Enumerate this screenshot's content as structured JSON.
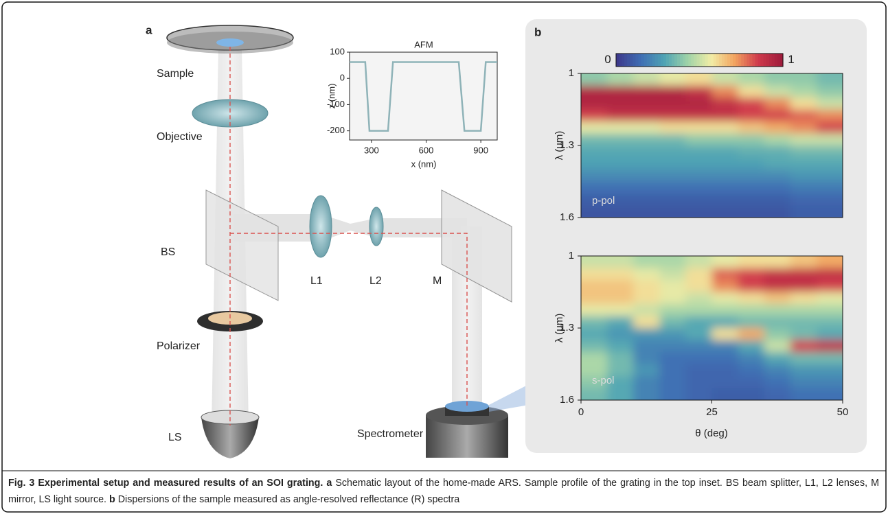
{
  "figure": {
    "panel_a_label": "a",
    "panel_b_label": "b",
    "components": {
      "sample": "Sample",
      "objective": "Objective",
      "bs": "BS",
      "polarizer": "Polarizer",
      "ls": "LS",
      "l1": "L1",
      "l2": "L2",
      "m": "M",
      "spectrometer": "Spectrometer"
    }
  },
  "chart_data": [
    {
      "type": "line",
      "title": "AFM",
      "x_label": "x (nm)",
      "y_label": "z (nm)",
      "x": [
        180,
        266,
        289,
        391,
        418,
        779,
        810,
        900,
        927,
        990
      ],
      "values": [
        62,
        62,
        -200,
        -200,
        62,
        62,
        -200,
        -200,
        62,
        62
      ],
      "color": "#8fb3b8",
      "xlim": [
        180,
        990
      ],
      "ylim": [
        -235,
        100
      ],
      "xticks": [
        300,
        600,
        900
      ],
      "yticks": [
        100,
        0,
        -100,
        -200
      ]
    },
    {
      "type": "heatmap",
      "annotation": "p-pol",
      "y_label": "λ (μm)",
      "colormap": [
        "#3d3a8c",
        "#3f6eb4",
        "#4fa3b4",
        "#9fd3a8",
        "#f2eda6",
        "#f2a35f",
        "#cf3a4c",
        "#a01c3c"
      ],
      "colorbar": {
        "ticks": [
          0,
          1
        ]
      },
      "x": [
        2.5,
        7.5,
        12.5,
        17.5,
        22.5,
        27.5,
        32.5,
        37.5,
        42.5,
        47.5
      ],
      "y": [
        1.025,
        1.075,
        1.125,
        1.175,
        1.225,
        1.275,
        1.325,
        1.375,
        1.425,
        1.475,
        1.525,
        1.575
      ],
      "z": [
        [
          0.4,
          0.45,
          0.5,
          0.55,
          0.6,
          0.5,
          0.45,
          0.4,
          0.4,
          0.35
        ],
        [
          0.95,
          0.95,
          0.95,
          0.95,
          0.9,
          0.75,
          0.6,
          0.5,
          0.45,
          0.4
        ],
        [
          0.95,
          0.95,
          0.95,
          0.95,
          0.95,
          0.9,
          0.85,
          0.75,
          0.6,
          0.5
        ],
        [
          0.85,
          0.9,
          0.9,
          0.9,
          0.9,
          0.9,
          0.85,
          0.85,
          0.8,
          0.75
        ],
        [
          0.55,
          0.55,
          0.55,
          0.6,
          0.6,
          0.6,
          0.65,
          0.7,
          0.75,
          0.85
        ],
        [
          0.35,
          0.35,
          0.35,
          0.35,
          0.4,
          0.4,
          0.4,
          0.45,
          0.5,
          0.5
        ],
        [
          0.3,
          0.3,
          0.3,
          0.3,
          0.3,
          0.3,
          0.32,
          0.32,
          0.35,
          0.35
        ],
        [
          0.28,
          0.28,
          0.28,
          0.28,
          0.28,
          0.28,
          0.28,
          0.3,
          0.3,
          0.3
        ],
        [
          0.22,
          0.22,
          0.22,
          0.22,
          0.22,
          0.22,
          0.22,
          0.22,
          0.25,
          0.25
        ],
        [
          0.15,
          0.15,
          0.15,
          0.15,
          0.15,
          0.15,
          0.15,
          0.15,
          0.18,
          0.18
        ],
        [
          0.1,
          0.1,
          0.1,
          0.1,
          0.1,
          0.1,
          0.1,
          0.1,
          0.12,
          0.12
        ],
        [
          0.08,
          0.08,
          0.08,
          0.08,
          0.08,
          0.08,
          0.08,
          0.08,
          0.1,
          0.1
        ]
      ],
      "xlim": [
        0,
        50
      ],
      "ylim": [
        1,
        1.6
      ],
      "y_inverted": true,
      "yticks": [
        1,
        1.3,
        1.6
      ]
    },
    {
      "type": "heatmap",
      "annotation": "s-pol",
      "y_label": "λ (μm)",
      "x_label": "θ (deg)",
      "colormap": [
        "#3d3a8c",
        "#3f6eb4",
        "#4fa3b4",
        "#9fd3a8",
        "#f2eda6",
        "#f2a35f",
        "#cf3a4c",
        "#a01c3c"
      ],
      "x": [
        2.5,
        7.5,
        12.5,
        17.5,
        22.5,
        27.5,
        32.5,
        37.5,
        42.5,
        47.5
      ],
      "y": [
        1.025,
        1.075,
        1.125,
        1.175,
        1.225,
        1.275,
        1.325,
        1.375,
        1.425,
        1.475,
        1.525,
        1.575
      ],
      "z": [
        [
          0.5,
          0.5,
          0.45,
          0.45,
          0.5,
          0.55,
          0.6,
          0.6,
          0.65,
          0.7
        ],
        [
          0.6,
          0.6,
          0.55,
          0.5,
          0.6,
          0.8,
          0.85,
          0.9,
          0.9,
          0.9
        ],
        [
          0.65,
          0.65,
          0.6,
          0.55,
          0.6,
          0.75,
          0.85,
          0.9,
          0.9,
          0.85
        ],
        [
          0.65,
          0.65,
          0.6,
          0.55,
          0.5,
          0.55,
          0.6,
          0.65,
          0.6,
          0.55
        ],
        [
          0.55,
          0.55,
          0.5,
          0.45,
          0.45,
          0.45,
          0.45,
          0.45,
          0.45,
          0.45
        ],
        [
          0.35,
          0.3,
          0.6,
          0.35,
          0.3,
          0.3,
          0.35,
          0.35,
          0.35,
          0.35
        ],
        [
          0.3,
          0.25,
          0.25,
          0.25,
          0.3,
          0.6,
          0.7,
          0.4,
          0.35,
          0.3
        ],
        [
          0.35,
          0.3,
          0.2,
          0.2,
          0.2,
          0.2,
          0.3,
          0.5,
          0.85,
          0.9
        ],
        [
          0.45,
          0.35,
          0.2,
          0.15,
          0.15,
          0.15,
          0.2,
          0.3,
          0.35,
          0.35
        ],
        [
          0.45,
          0.35,
          0.25,
          0.15,
          0.12,
          0.12,
          0.15,
          0.2,
          0.25,
          0.25
        ],
        [
          0.4,
          0.3,
          0.2,
          0.15,
          0.12,
          0.12,
          0.12,
          0.15,
          0.2,
          0.2
        ],
        [
          0.35,
          0.3,
          0.2,
          0.15,
          0.12,
          0.1,
          0.1,
          0.12,
          0.15,
          0.15
        ]
      ],
      "xlim": [
        0,
        50
      ],
      "ylim": [
        1,
        1.6
      ],
      "y_inverted": true,
      "xticks": [
        0,
        25,
        50
      ],
      "yticks": [
        1,
        1.3,
        1.6
      ]
    }
  ],
  "caption": {
    "title": "Fig. 3 Experimental setup and measured results of an SOI grating.",
    "parts": [
      {
        "label": "a",
        "text": "Schematic layout of the home-made ARS. Sample profile of the grating in the top inset. BS beam splitter, L1, L2 lenses, M mirror, LS light source."
      },
      {
        "label": "b",
        "text": "Dispersions of the sample measured as angle-resolved reflectance (R) spectra"
      }
    ]
  }
}
